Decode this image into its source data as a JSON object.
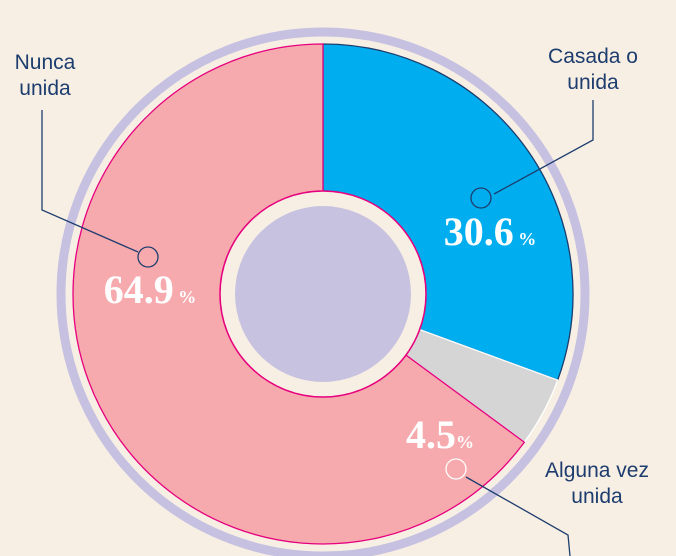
{
  "chart_data": {
    "type": "pie",
    "donut": true,
    "categories": [
      "Casada o unida",
      "Alguna vez unida",
      "Nunca unida"
    ],
    "values": [
      30.6,
      4.5,
      64.9
    ],
    "value_labels": [
      "30.6 %",
      "4.5%",
      "64.9 %"
    ],
    "colors": [
      "#00aeef",
      "#d5d5d5",
      "#f7aaae"
    ]
  }
}
